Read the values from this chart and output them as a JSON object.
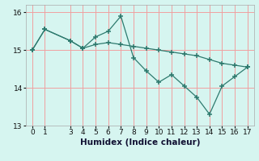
{
  "xlabel": "Humidex (Indice chaleur)",
  "background_color": "#d6f5f0",
  "grid_color": "#f0a0a0",
  "line_color": "#2d7a6e",
  "ylim": [
    13.0,
    16.2
  ],
  "xlim": [
    -0.5,
    17.5
  ],
  "yticks": [
    13,
    14,
    15,
    16
  ],
  "xticks": [
    0,
    1,
    3,
    4,
    5,
    6,
    7,
    8,
    9,
    10,
    11,
    12,
    13,
    14,
    15,
    16,
    17
  ],
  "series1_x": [
    0,
    1,
    3,
    4,
    5,
    6,
    7,
    8,
    9,
    10,
    11,
    12,
    13,
    14,
    15,
    16,
    17
  ],
  "series1_y": [
    15.0,
    15.55,
    15.25,
    15.05,
    15.35,
    15.5,
    15.9,
    14.8,
    14.45,
    14.15,
    14.35,
    14.05,
    13.75,
    13.3,
    14.05,
    14.3,
    14.55
  ],
  "series2_x": [
    0,
    1,
    3,
    4,
    5,
    6,
    7,
    8,
    9,
    10,
    11,
    12,
    13,
    14,
    15,
    16,
    17
  ],
  "series2_y": [
    15.0,
    15.55,
    15.25,
    15.05,
    15.15,
    15.2,
    15.15,
    15.1,
    15.05,
    15.0,
    14.95,
    14.9,
    14.85,
    14.75,
    14.65,
    14.6,
    14.55
  ],
  "tick_labelsize": 6.5,
  "xlabel_fontsize": 7.5
}
